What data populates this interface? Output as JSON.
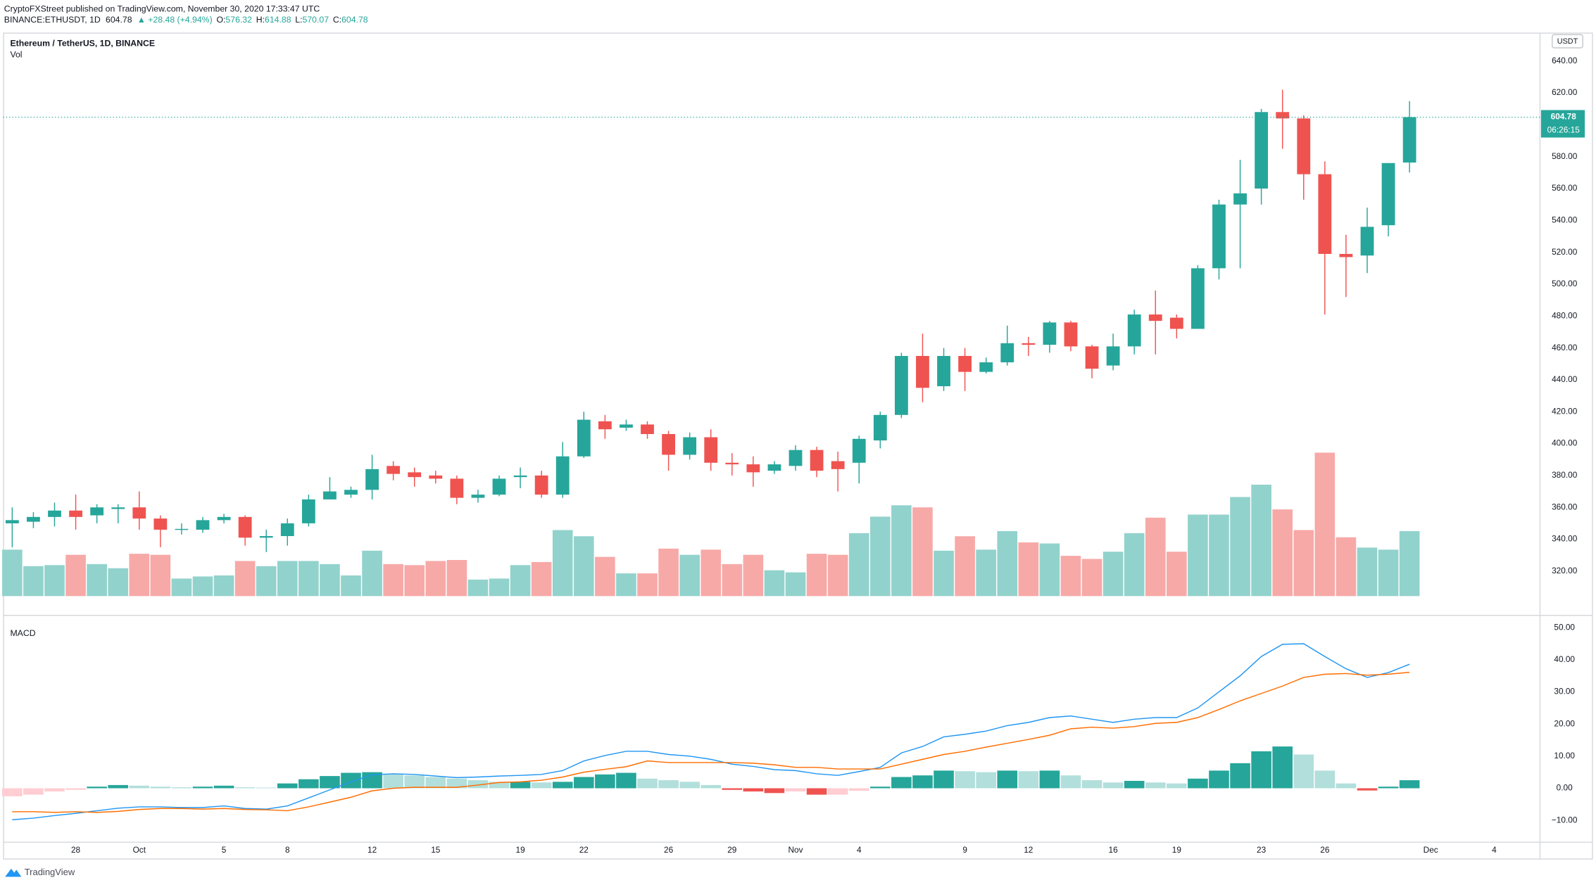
{
  "header": {
    "line1": "CryptoFXStreet published on TradingView.com, November 30, 2020 17:33:47 UTC",
    "symbol": "BINANCE:ETHUSDT, 1D",
    "price": "604.78",
    "change": "▲ +28.48 (+4.94%)",
    "ohlc": [
      {
        "k": "O:",
        "v": "576.32"
      },
      {
        "k": "H:",
        "v": "614.88"
      },
      {
        "k": "L:",
        "v": "570.07"
      },
      {
        "k": "C:",
        "v": "604.78"
      }
    ]
  },
  "footer": {
    "logo": "TradingView"
  },
  "chart_data": {
    "type": "candlestick",
    "title": "Ethereum / TetherUS, 1D, BINANCE",
    "currency": "USDT",
    "categories": [
      null,
      null,
      null,
      "28",
      null,
      null,
      "Oct",
      null,
      null,
      null,
      "5",
      null,
      null,
      "8",
      null,
      null,
      null,
      "12",
      null,
      null,
      "15",
      null,
      null,
      null,
      "19",
      null,
      null,
      "22",
      null,
      null,
      null,
      "26",
      null,
      null,
      "29",
      null,
      null,
      "Nov",
      null,
      null,
      "4",
      null,
      null,
      null,
      null,
      "9",
      null,
      null,
      "12",
      null,
      null,
      null,
      "16",
      null,
      null,
      "19",
      null,
      null,
      null,
      "23",
      null,
      null,
      "26",
      null,
      null,
      null,
      null
    ],
    "future_categories": [
      "Dec",
      null,
      null,
      "4"
    ],
    "open": [
      350,
      351,
      354,
      358,
      355,
      359,
      360,
      353,
      346,
      346,
      352,
      354,
      341,
      342,
      350,
      365,
      368,
      371,
      386,
      382,
      380,
      378,
      366,
      368,
      379,
      380,
      368,
      392,
      414,
      410,
      412,
      406,
      393,
      404,
      388,
      387,
      383,
      386,
      396,
      389,
      388,
      402,
      418,
      455,
      436,
      455,
      445,
      451,
      463,
      462,
      476,
      461,
      449,
      461,
      481,
      479,
      472,
      510,
      550,
      560,
      608,
      604,
      569,
      519,
      518,
      537,
      576.32
    ],
    "high": [
      360,
      357,
      363,
      368,
      362,
      362,
      370,
      355,
      350,
      354,
      356,
      355,
      346,
      353,
      368,
      379,
      373,
      393,
      389,
      385,
      383,
      380,
      371,
      380,
      385,
      383,
      401,
      420,
      418,
      415,
      414,
      408,
      407,
      409,
      394,
      392,
      389,
      399,
      398,
      395,
      405,
      420,
      457,
      469,
      460,
      460,
      454,
      474,
      467,
      477,
      477,
      462,
      469,
      484,
      496,
      481,
      512,
      553,
      578,
      610,
      622,
      606,
      577,
      531,
      548,
      576,
      614.88
    ],
    "low": [
      335,
      347,
      348,
      346,
      350,
      350,
      346,
      335,
      343,
      344,
      350,
      336,
      332,
      336,
      348,
      365,
      366,
      365,
      377,
      373,
      375,
      362,
      363,
      367,
      372,
      366,
      366,
      391,
      403,
      408,
      403,
      383,
      390,
      383,
      380,
      373,
      381,
      383,
      379,
      370,
      375,
      397,
      416,
      426,
      433,
      433,
      444,
      449,
      455,
      457,
      458,
      441,
      446,
      456,
      456,
      466,
      472,
      503,
      510,
      550,
      585,
      553,
      481,
      492,
      507,
      530,
      570.07
    ],
    "close": [
      352,
      354,
      358,
      354,
      360,
      360,
      353,
      346,
      346.5,
      352,
      354,
      341,
      342,
      350,
      365,
      370,
      371,
      384,
      381,
      379,
      378,
      366,
      368,
      378,
      380,
      368,
      392,
      415,
      409,
      412,
      406,
      393,
      404,
      388,
      387,
      382,
      387,
      396,
      383,
      384,
      403,
      418,
      455,
      435,
      455,
      445,
      451,
      463,
      462,
      476,
      461,
      447,
      461,
      481,
      477,
      472,
      510,
      550,
      557,
      608,
      604,
      569,
      519,
      517,
      536,
      576,
      604.78
    ],
    "up_color": "#26a69a",
    "down_color": "#ef5350",
    "ylim": [
      296.7,
      657.2
    ],
    "yticks": [
      {
        "value": 320,
        "label": "320.00"
      },
      {
        "value": 340,
        "label": "340.00"
      },
      {
        "value": 360,
        "label": "360.00"
      },
      {
        "value": 380,
        "label": "380.00"
      },
      {
        "value": 400,
        "label": "400.00"
      },
      {
        "value": 420,
        "label": "420.00"
      },
      {
        "value": 440,
        "label": "440.00"
      },
      {
        "value": 460,
        "label": "460.00"
      },
      {
        "value": 480,
        "label": "480.00"
      },
      {
        "value": 500,
        "label": "500.00"
      },
      {
        "value": 520,
        "label": "520.00"
      },
      {
        "value": 540,
        "label": "540.00"
      },
      {
        "value": 560,
        "label": "560.00"
      },
      {
        "value": 580,
        "label": "580.00"
      },
      {
        "value": 600,
        "label": "600.00"
      },
      {
        "value": 620,
        "label": "620.00"
      },
      {
        "value": 640,
        "label": "640.00"
      }
    ],
    "grid": false,
    "last_price": {
      "value": 604.78,
      "label": "604.78"
    },
    "countdown": "06:26:15",
    "volume": {
      "name": "Vol",
      "up_color": "#92d2cc",
      "down_color": "#f7a9a7",
      "values": [
        45,
        29,
        30,
        40,
        31,
        27,
        41,
        40,
        17,
        19,
        20,
        34,
        29,
        34,
        34,
        31,
        20,
        44,
        31,
        30,
        34,
        35,
        16,
        17,
        30,
        33,
        64,
        58,
        38,
        22,
        22,
        46,
        40,
        45,
        31,
        40,
        25,
        23,
        41,
        40,
        61,
        77,
        88,
        86,
        44,
        58,
        45,
        63,
        52,
        51,
        39,
        36,
        43,
        61,
        76,
        43,
        79,
        79,
        96,
        108,
        84,
        64,
        139,
        57,
        47,
        45,
        63
      ]
    },
    "macd": {
      "title": "MACD",
      "ylim": [
        -16.8,
        51.9
      ],
      "yticks": [
        {
          "value": -10,
          "label": "−10.00"
        },
        {
          "value": 0,
          "label": "0.00"
        },
        {
          "value": 10,
          "label": "10.00"
        },
        {
          "value": 20,
          "label": "20.00"
        },
        {
          "value": 30,
          "label": "30.00"
        },
        {
          "value": 40,
          "label": "40.00"
        },
        {
          "value": 50,
          "label": "50.00"
        }
      ],
      "histogram": {
        "colors": [
          "#26a69a",
          "#b2dfdb",
          "#ffcdd2",
          "#ef5350"
        ],
        "values": [
          -2.5,
          -2,
          -1,
          -0.5,
          0.5,
          1,
          0.8,
          0.5,
          0.3,
          0.5,
          0.8,
          0.3,
          0.2,
          1.5,
          2.8,
          3.8,
          4.8,
          5,
          4.5,
          4,
          3.5,
          3,
          2.5,
          2,
          2,
          1.8,
          2,
          3.5,
          4.3,
          4.8,
          3,
          2.5,
          2,
          1,
          -0.5,
          -1,
          -1.5,
          -1,
          -2,
          -2,
          -0.8,
          0.5,
          3.5,
          4,
          5.5,
          5.3,
          5,
          5.5,
          5.3,
          5.5,
          4,
          2.5,
          1.8,
          2.3,
          1.8,
          1.5,
          3,
          5.5,
          7.8,
          11.5,
          13,
          10.5,
          5.5,
          1.5,
          -0.7,
          0.5,
          2.5
        ]
      },
      "series": [
        {
          "color": "#2196f3",
          "values": [
            -9.8,
            -9.3,
            -8.5,
            -7.8,
            -7,
            -6.2,
            -5.8,
            -5.8,
            -6,
            -6,
            -5.5,
            -6.3,
            -6.5,
            -5.5,
            -3,
            -0.5,
            2,
            4.2,
            4.5,
            4.3,
            3.8,
            3.3,
            3.5,
            3.8,
            4,
            4.3,
            5.5,
            8.5,
            10.2,
            11.5,
            11.5,
            10.5,
            10,
            9,
            7.5,
            6.8,
            5.8,
            5.5,
            4.5,
            4,
            5.2,
            6.5,
            11,
            13,
            16,
            16.8,
            17.8,
            19.5,
            20.5,
            22,
            22.5,
            21.5,
            20.5,
            21.5,
            22,
            22,
            25,
            30,
            35,
            41,
            44.8,
            45,
            41,
            37.2,
            34.5,
            36,
            38.6
          ]
        },
        {
          "color": "#ff6d00",
          "values": [
            -7.3,
            -7.3,
            -7.5,
            -7.3,
            -7.5,
            -7.2,
            -6.6,
            -6.3,
            -6.3,
            -6.5,
            -6.3,
            -6.6,
            -6.7,
            -7,
            -5.8,
            -4.3,
            -2.8,
            -0.8,
            0,
            0.3,
            0.3,
            0.3,
            1,
            1.8,
            2,
            2.5,
            3.5,
            5,
            5.9,
            6.7,
            8.5,
            8,
            8,
            8,
            8,
            7.8,
            7.3,
            6.5,
            6.5,
            6,
            6,
            6,
            7.5,
            9,
            10.5,
            11.5,
            12.8,
            14,
            15.2,
            16.5,
            18.5,
            19,
            18.7,
            19.2,
            20.2,
            20.5,
            22,
            24.5,
            27.2,
            29.5,
            31.8,
            34.5,
            35.5,
            35.7,
            35.2,
            35.5,
            36.1
          ]
        }
      ]
    }
  }
}
